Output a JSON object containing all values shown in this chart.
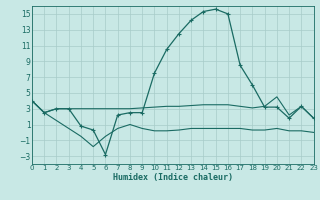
{
  "xlabel": "Humidex (Indice chaleur)",
  "xlim": [
    0,
    23
  ],
  "ylim": [
    -4,
    16
  ],
  "yticks": [
    -3,
    -1,
    1,
    3,
    5,
    7,
    9,
    11,
    13,
    15
  ],
  "xticks": [
    0,
    1,
    2,
    3,
    4,
    5,
    6,
    7,
    8,
    9,
    10,
    11,
    12,
    13,
    14,
    15,
    16,
    17,
    18,
    19,
    20,
    21,
    22,
    23
  ],
  "bg_color": "#c8e8e5",
  "grid_color": "#a8ccc9",
  "line_color": "#1a6b63",
  "line1_y": [
    4.0,
    2.5,
    3.0,
    3.0,
    0.8,
    0.3,
    -2.8,
    2.2,
    2.5,
    2.5,
    7.5,
    10.5,
    12.5,
    14.2,
    15.3,
    15.6,
    15.0,
    8.5,
    6.0,
    3.2,
    3.2,
    1.8,
    3.3,
    1.8
  ],
  "line2_y": [
    4.0,
    2.5,
    3.0,
    3.0,
    3.0,
    3.0,
    3.0,
    3.0,
    3.0,
    3.1,
    3.2,
    3.3,
    3.3,
    3.4,
    3.5,
    3.5,
    3.5,
    3.3,
    3.1,
    3.3,
    4.5,
    2.2,
    3.3,
    1.8
  ],
  "line3_y": [
    4.0,
    2.5,
    1.5,
    0.5,
    -0.5,
    -1.8,
    -0.5,
    0.5,
    1.0,
    0.5,
    0.2,
    0.2,
    0.3,
    0.5,
    0.5,
    0.5,
    0.5,
    0.5,
    0.3,
    0.3,
    0.5,
    0.2,
    0.2,
    0.0
  ]
}
